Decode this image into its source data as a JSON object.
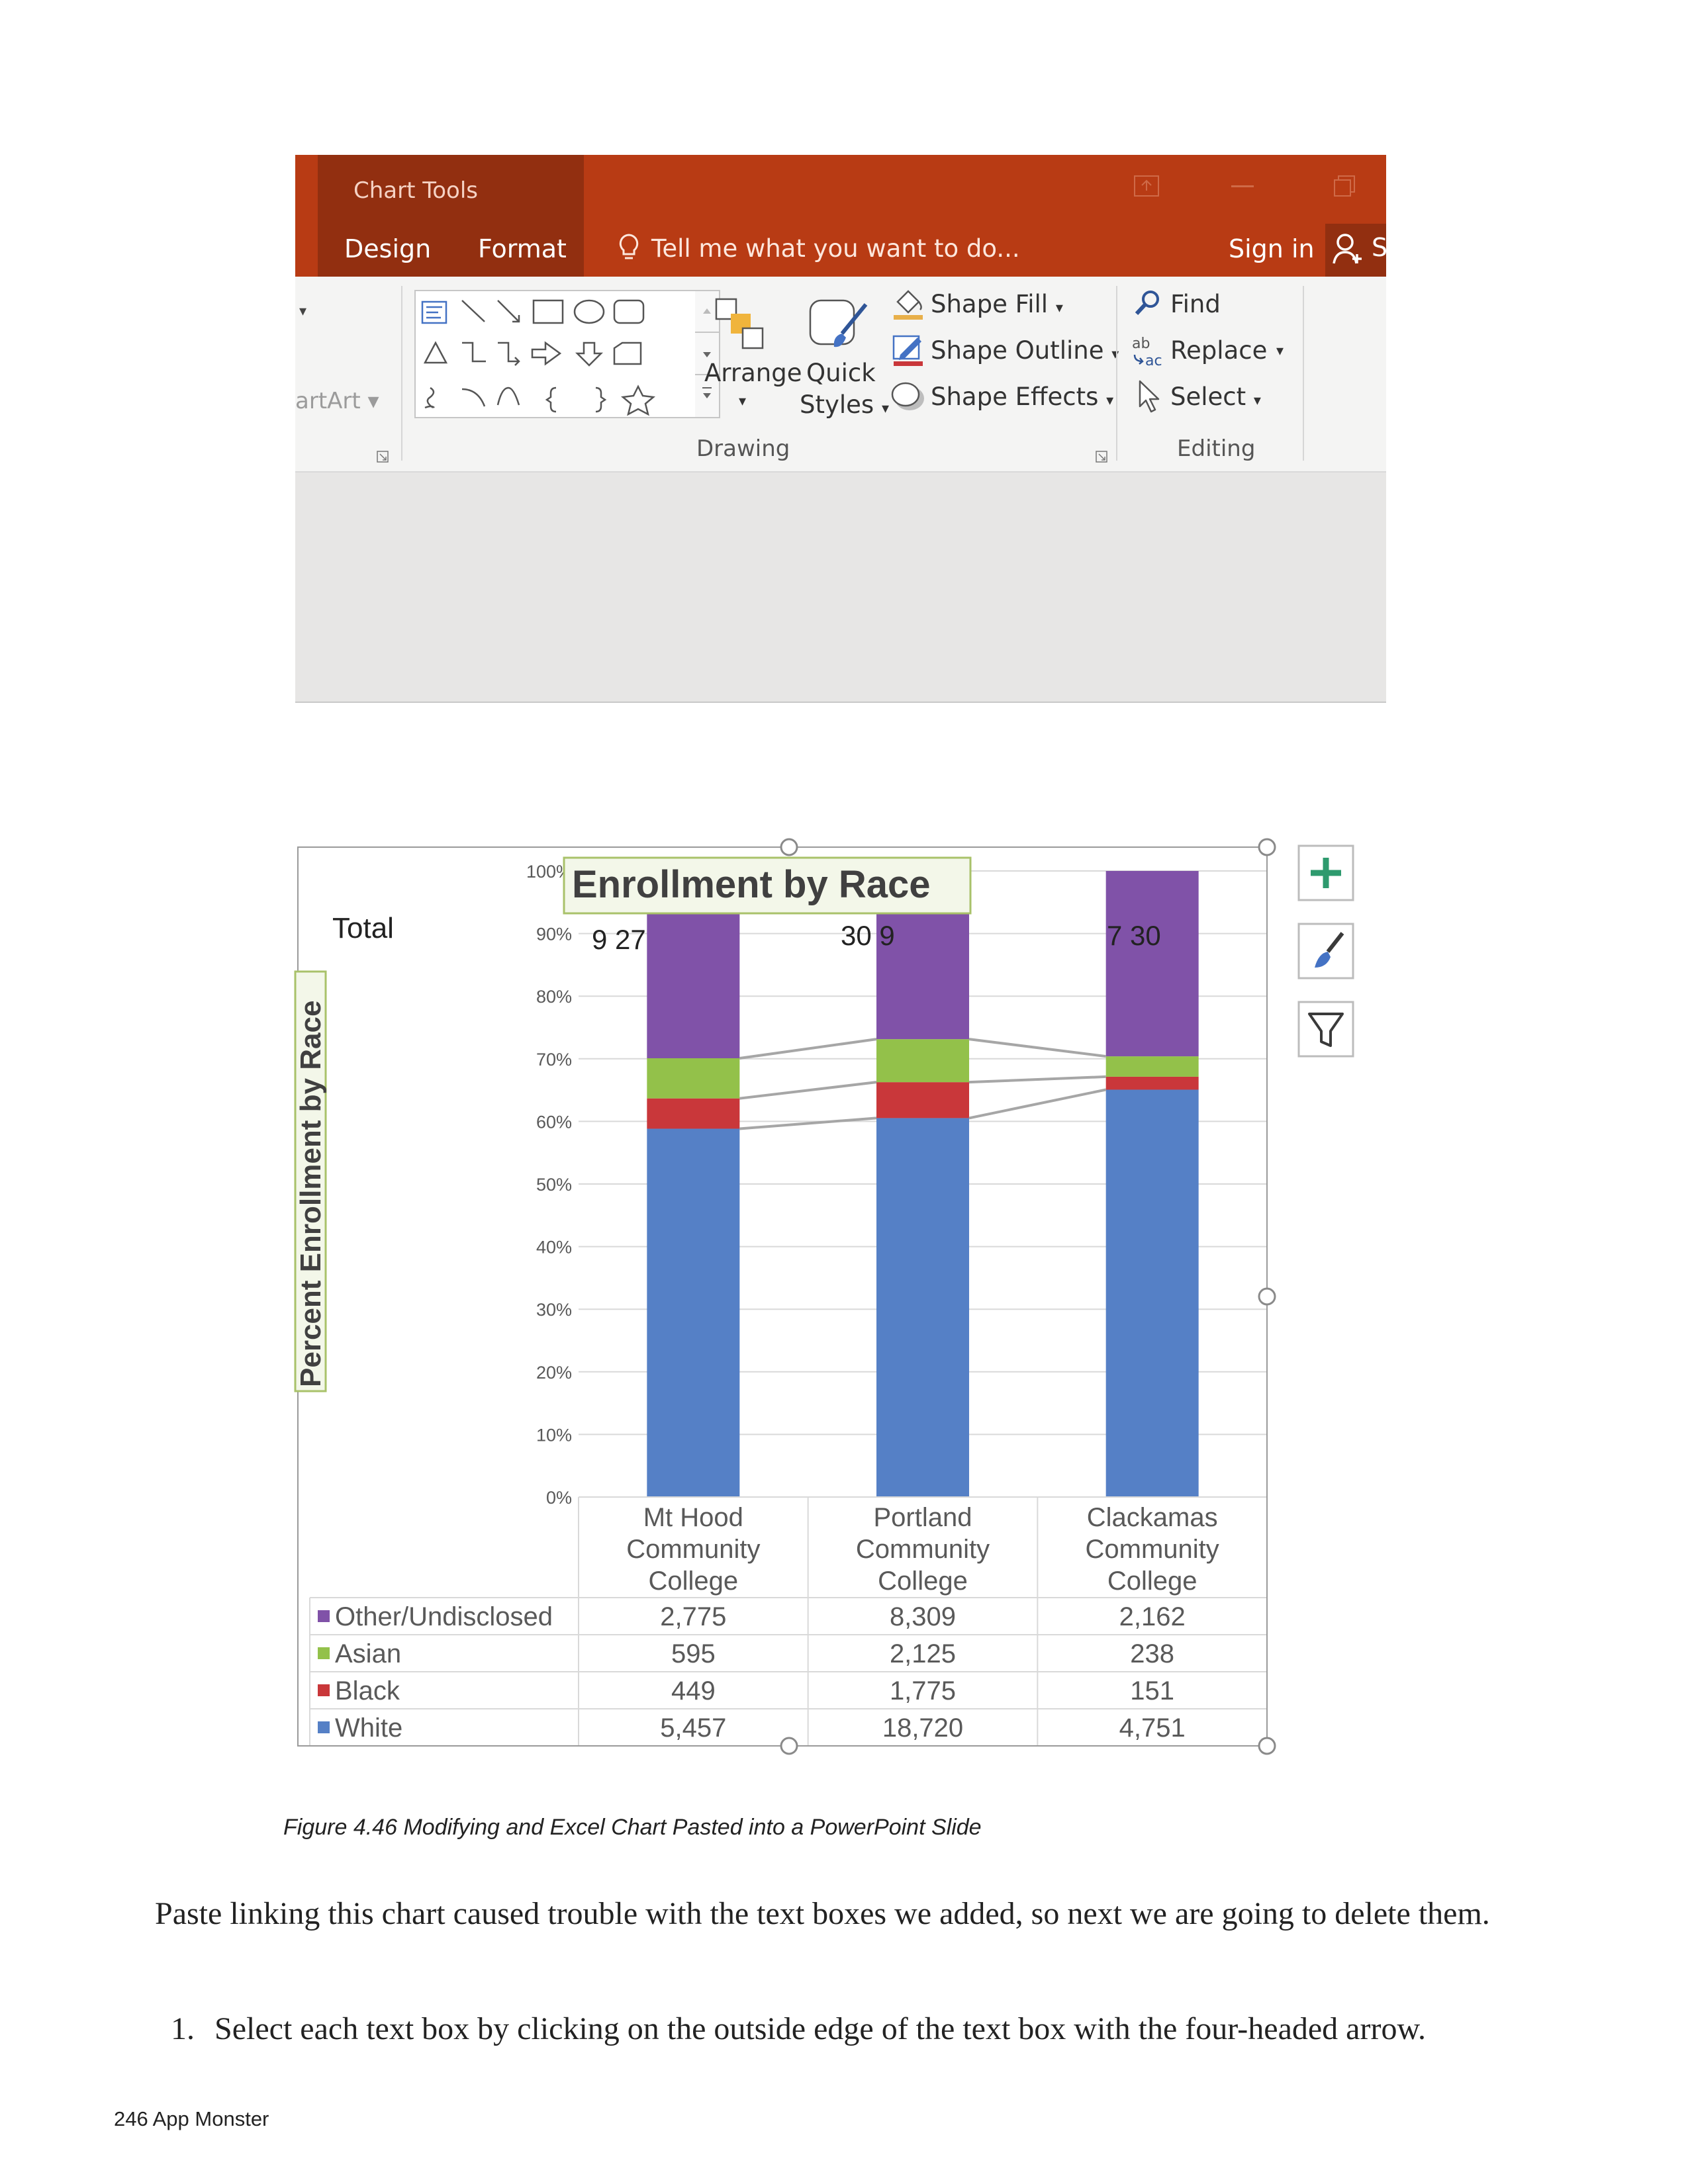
{
  "ribbon": {
    "context_label": "Chart Tools",
    "tabs": [
      "Design",
      "Format"
    ],
    "tell_me": "Tell me what you want to do...",
    "sign_in": "Sign in",
    "share_fragment": "S",
    "left_group_fragment": "artArt",
    "drawing": {
      "group_label": "Drawing",
      "arrange": "Arrange",
      "quick": "Quick",
      "styles": "Styles",
      "shape_fill": "Shape Fill",
      "shape_outline": "Shape Outline",
      "shape_effects": "Shape Effects"
    },
    "editing": {
      "group_label": "Editing",
      "find": "Find",
      "replace": "Replace",
      "select": "Select"
    }
  },
  "chart_data": {
    "type": "bar",
    "stacked": true,
    "normalized": true,
    "title": "Enrollment by Race",
    "ylabel": "Percent Enrollment by Race",
    "ylim": [
      0,
      100
    ],
    "yticks": [
      "0%",
      "10%",
      "20%",
      "30%",
      "40%",
      "50%",
      "60%",
      "70%",
      "80%",
      "90%",
      "100%"
    ],
    "overlay_text": {
      "total_label": "Total",
      "fragments": [
        "9 27",
        "30 9",
        "7 30"
      ]
    },
    "categories": [
      [
        "Mt Hood",
        "Community",
        "College"
      ],
      [
        "Portland",
        "Community",
        "College"
      ],
      [
        "Clackamas",
        "Community",
        "College"
      ]
    ],
    "series": [
      {
        "name": "White",
        "color": "#5580c6",
        "values": [
          5457,
          18720,
          4751
        ],
        "labels": [
          "5,457",
          "18,720",
          "4,751"
        ]
      },
      {
        "name": "Black",
        "color": "#c9373a",
        "values": [
          449,
          1775,
          151
        ],
        "labels": [
          "449",
          "1,775",
          "151"
        ]
      },
      {
        "name": "Asian",
        "color": "#93c14a",
        "values": [
          595,
          2125,
          238
        ],
        "labels": [
          "595",
          "2,125",
          "238"
        ]
      },
      {
        "name": "Other/Undisclosed",
        "color": "#8052a8",
        "values": [
          2775,
          8309,
          2162
        ],
        "labels": [
          "2,775",
          "8,309",
          "2,162"
        ]
      }
    ],
    "table_row_order": [
      "Other/Undisclosed",
      "Asian",
      "Black",
      "White"
    ],
    "grid": true,
    "series_lines": true,
    "legend": "data-table"
  },
  "chart_buttons": [
    "chart-elements",
    "chart-styles",
    "chart-filters"
  ],
  "caption": "Figure 4.46 Modifying and Excel Chart Pasted into a PowerPoint Slide",
  "paragraph": "Paste linking this chart caused trouble with the text boxes we added, so next we are going to delete them.",
  "steps": [
    {
      "number": "1.",
      "text": "Select each text box by clicking on the outside edge of the text box with the four-headed arrow."
    }
  ],
  "footer": "246 App Monster"
}
